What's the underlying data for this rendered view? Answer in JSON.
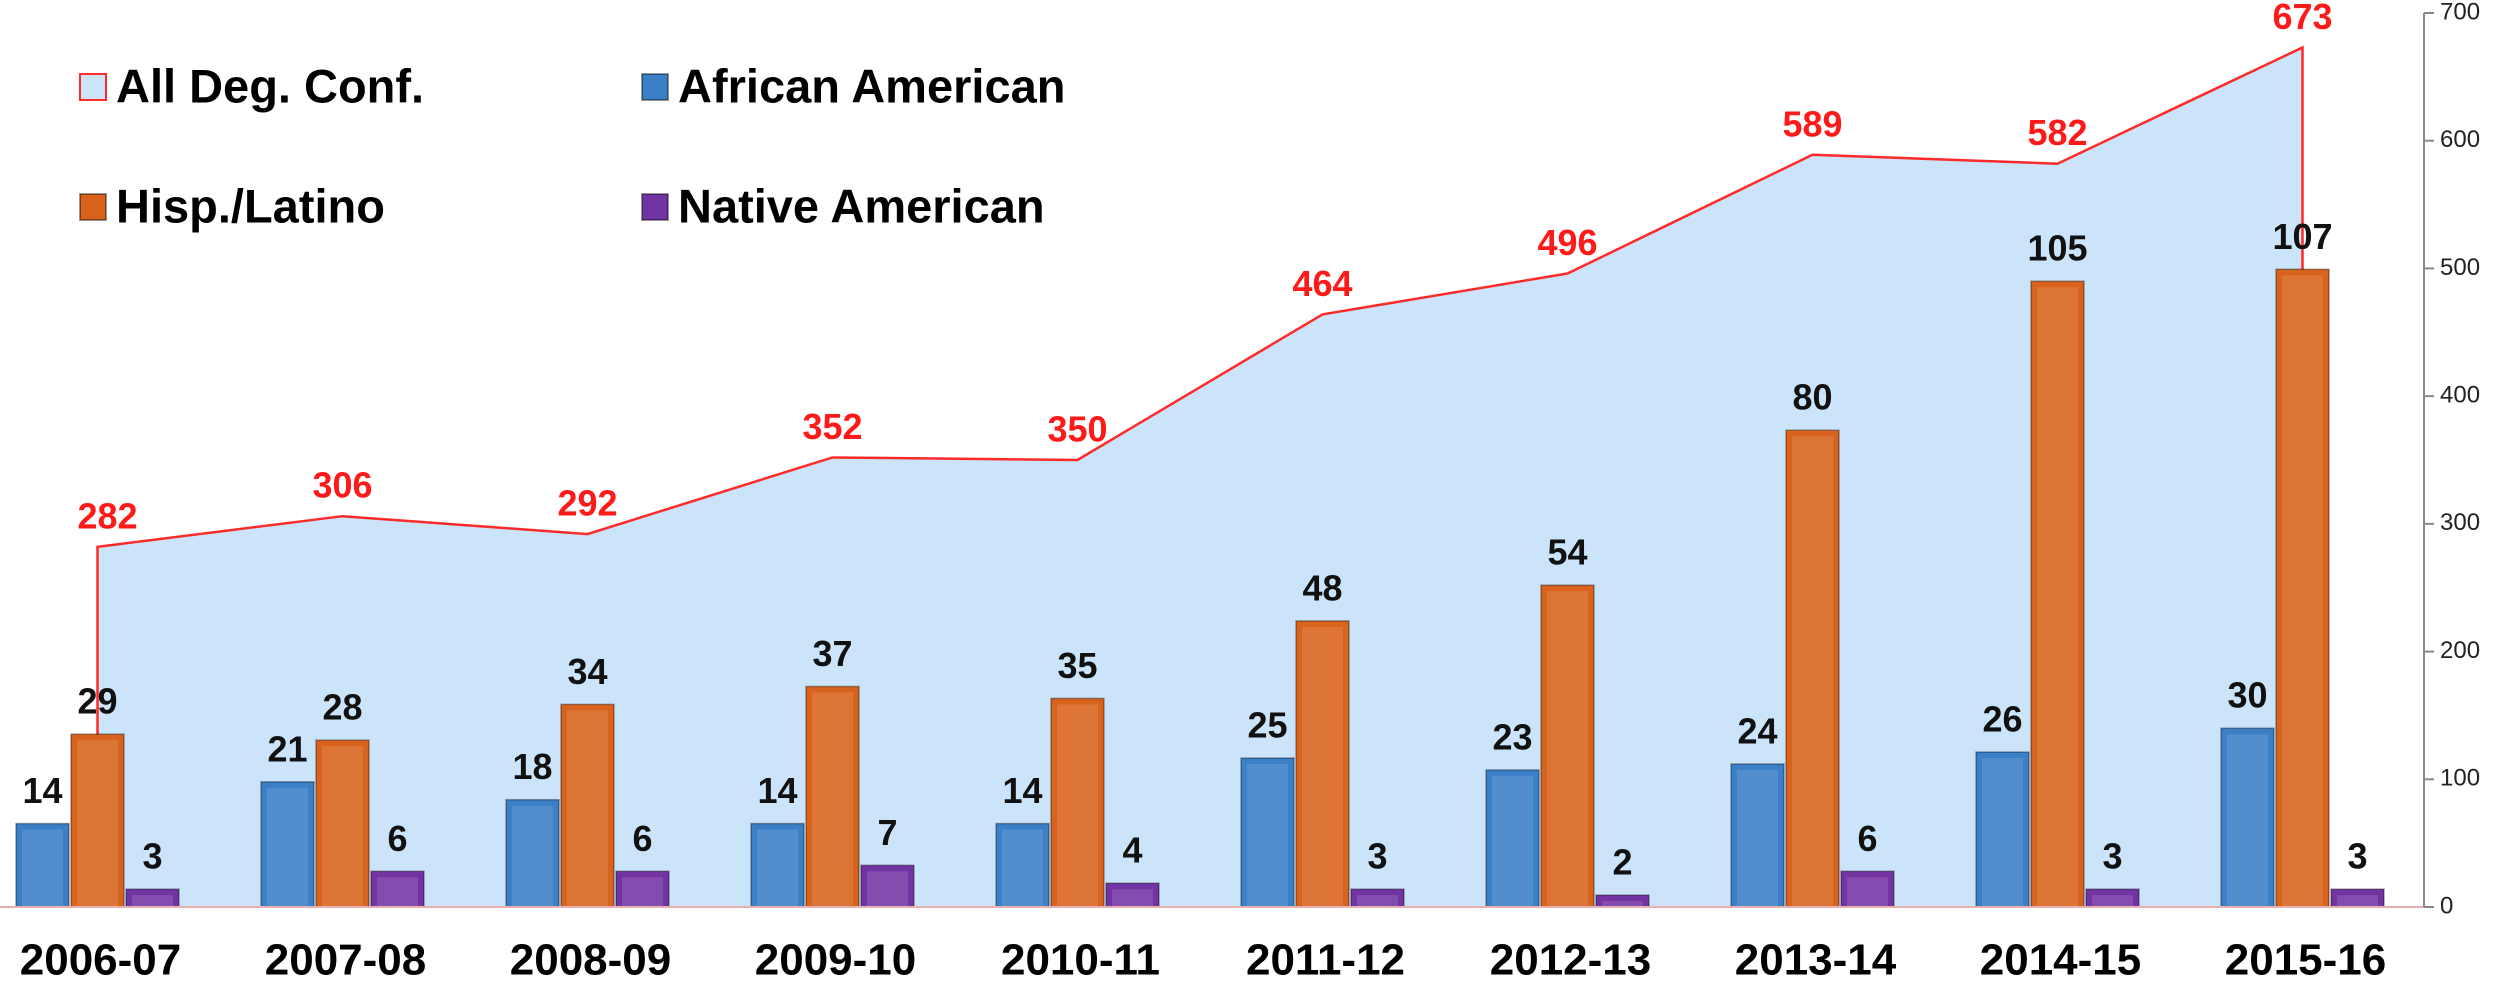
{
  "chart_data": {
    "type": "bar",
    "categories": [
      "2006-07",
      "2007-08",
      "2008-09",
      "2009-10",
      "2010-11",
      "2011-12",
      "2012-13",
      "2013-14",
      "2014-15",
      "2015-16"
    ],
    "series": [
      {
        "name": "All Deg. Conf.",
        "type": "area",
        "axis": "y2",
        "color": "#ff2a2a",
        "fill": "#cce4fa",
        "values": [
          282,
          306,
          292,
          352,
          350,
          464,
          496,
          589,
          582,
          673
        ]
      },
      {
        "name": "African American",
        "color": "#3b7fc6",
        "values": [
          14,
          21,
          18,
          14,
          14,
          25,
          23,
          24,
          26,
          30
        ]
      },
      {
        "name": "Hisp./Latino",
        "color": "#d9621c",
        "values": [
          29,
          28,
          34,
          37,
          35,
          48,
          54,
          80,
          105,
          107
        ]
      },
      {
        "name": "Native American",
        "color": "#7334a3",
        "values": [
          3,
          6,
          6,
          7,
          4,
          3,
          2,
          6,
          3,
          3
        ]
      }
    ],
    "ylim": [
      0,
      150
    ],
    "y2lim": [
      0,
      700
    ],
    "y2ticks": [
      0,
      100,
      200,
      300,
      400,
      500,
      600,
      700
    ],
    "legend": "upper left"
  }
}
